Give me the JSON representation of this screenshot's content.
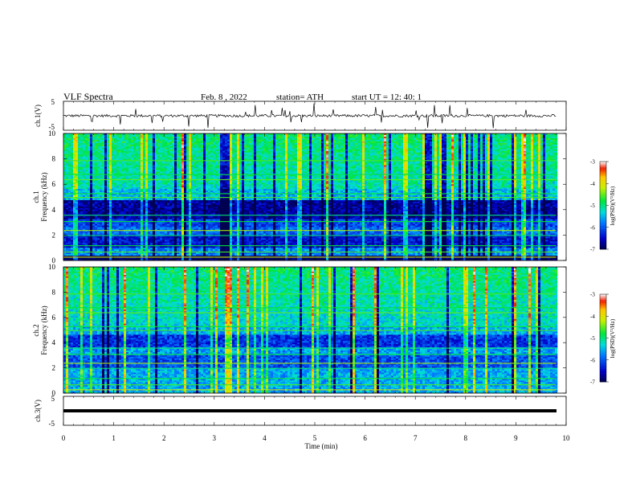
{
  "header": {
    "title": "VLF Spectra",
    "date": "Feb. 8 , 2022",
    "station": "station= ATH",
    "start_ut": "start UT =  12: 40: 1"
  },
  "chart_data": [
    {
      "type": "line",
      "panel": "ch1-waveform",
      "ylabel": "ch.1(V)",
      "ylim": [
        -5,
        5
      ],
      "y_ticks": [
        "5",
        "-5"
      ],
      "xlim": [
        0,
        10
      ],
      "baseline_value": 0,
      "color": "#000000"
    },
    {
      "type": "heatmap",
      "panel": "ch1-spectrogram",
      "ylabel_line1": "ch.1",
      "ylabel_line2": "Frequency (kHz)",
      "ylim": [
        0,
        10
      ],
      "y_ticks": [
        "0",
        "2",
        "4",
        "6",
        "8",
        "10"
      ],
      "xlim": [
        0,
        9.8
      ],
      "colorbar": {
        "label": "log(PSD)(V²/Hz)",
        "range": [
          -7,
          -3
        ],
        "ticks": [
          "-3",
          "-4",
          "-5",
          "-6",
          "-7"
        ]
      }
    },
    {
      "type": "heatmap",
      "panel": "ch2-spectrogram",
      "ylabel_line1": "ch.2",
      "ylabel_line2": "Frequency (kHz)",
      "ylim": [
        0,
        10
      ],
      "y_ticks": [
        "0",
        "2",
        "4",
        "6",
        "8",
        "10"
      ],
      "xlim": [
        0,
        9.8
      ],
      "colorbar": {
        "label": "log(PSD)(V²/Hz)",
        "range": [
          -7,
          -3
        ],
        "ticks": [
          "-3",
          "-4",
          "-5",
          "-6",
          "-7"
        ]
      }
    },
    {
      "type": "line",
      "panel": "ch3-waveform",
      "ylabel": "ch.3(V)",
      "ylim": [
        -5,
        5
      ],
      "y_ticks": [
        "5",
        "-5"
      ],
      "xlim": [
        0,
        10
      ],
      "constant_value": 0,
      "color": "#000000"
    }
  ],
  "x_axis": {
    "label": "Time (min)",
    "ticks": [
      "0",
      "1",
      "2",
      "3",
      "4",
      "5",
      "6",
      "7",
      "8",
      "9",
      "10"
    ],
    "range": [
      0,
      10
    ]
  }
}
